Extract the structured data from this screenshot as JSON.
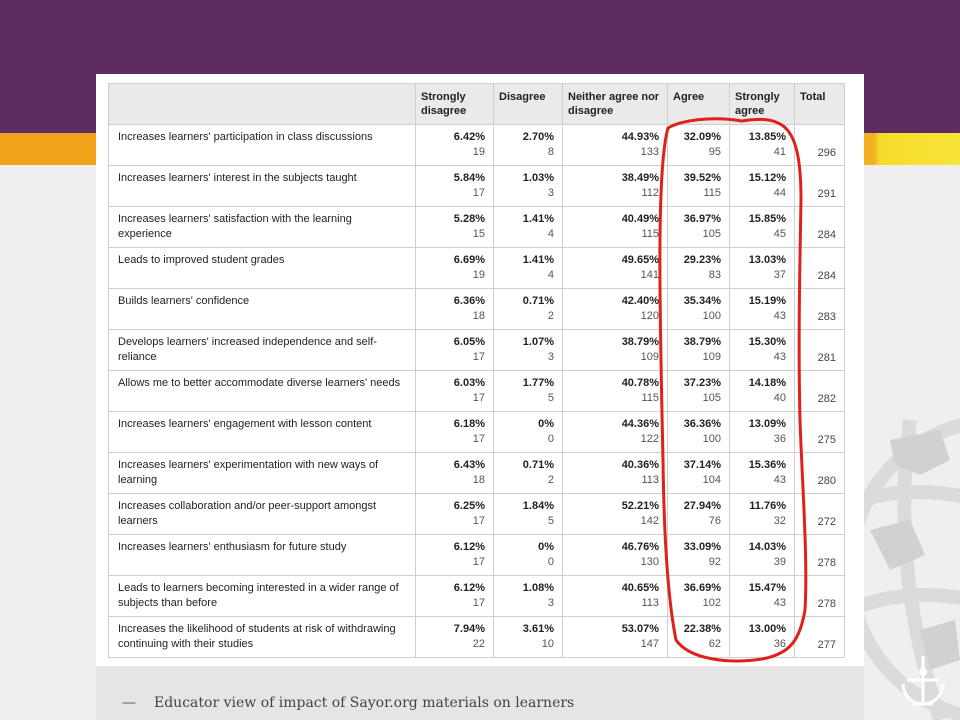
{
  "slide": {
    "caption": "Educator view of impact of Sayor.org materials on learners",
    "caption_dash": "—",
    "colors": {
      "band": "#5e2c60",
      "stripe_orange": "#eea31a",
      "stripe_yellow": "#f7e43a",
      "annotation": "#e0201c"
    }
  },
  "table": {
    "headers": [
      "",
      "Strongly disagree",
      "Disagree",
      "Neither agree nor disagree",
      "Agree",
      "Strongly agree",
      "Total"
    ],
    "rows": [
      {
        "statement": "Increases learners' participation in class discussions",
        "cells": [
          {
            "pct": "6.42%",
            "n": "19"
          },
          {
            "pct": "2.70%",
            "n": "8"
          },
          {
            "pct": "44.93%",
            "n": "133"
          },
          {
            "pct": "32.09%",
            "n": "95"
          },
          {
            "pct": "13.85%",
            "n": "41"
          }
        ],
        "total": "296"
      },
      {
        "statement": "Increases learners' interest in the subjects taught",
        "cells": [
          {
            "pct": "5.84%",
            "n": "17"
          },
          {
            "pct": "1.03%",
            "n": "3"
          },
          {
            "pct": "38.49%",
            "n": "112"
          },
          {
            "pct": "39.52%",
            "n": "115"
          },
          {
            "pct": "15.12%",
            "n": "44"
          }
        ],
        "total": "291"
      },
      {
        "statement": "Increases learners' satisfaction with the learning experience",
        "cells": [
          {
            "pct": "5.28%",
            "n": "15"
          },
          {
            "pct": "1.41%",
            "n": "4"
          },
          {
            "pct": "40.49%",
            "n": "115"
          },
          {
            "pct": "36.97%",
            "n": "105"
          },
          {
            "pct": "15.85%",
            "n": "45"
          }
        ],
        "total": "284"
      },
      {
        "statement": "Leads to improved student grades",
        "cells": [
          {
            "pct": "6.69%",
            "n": "19"
          },
          {
            "pct": "1.41%",
            "n": "4"
          },
          {
            "pct": "49.65%",
            "n": "141"
          },
          {
            "pct": "29.23%",
            "n": "83"
          },
          {
            "pct": "13.03%",
            "n": "37"
          }
        ],
        "total": "284"
      },
      {
        "statement": "Builds learners' confidence",
        "cells": [
          {
            "pct": "6.36%",
            "n": "18"
          },
          {
            "pct": "0.71%",
            "n": "2"
          },
          {
            "pct": "42.40%",
            "n": "120"
          },
          {
            "pct": "35.34%",
            "n": "100"
          },
          {
            "pct": "15.19%",
            "n": "43"
          }
        ],
        "total": "283"
      },
      {
        "statement": "Develops learners' increased independence and self-reliance",
        "cells": [
          {
            "pct": "6.05%",
            "n": "17"
          },
          {
            "pct": "1.07%",
            "n": "3"
          },
          {
            "pct": "38.79%",
            "n": "109"
          },
          {
            "pct": "38.79%",
            "n": "109"
          },
          {
            "pct": "15.30%",
            "n": "43"
          }
        ],
        "total": "281"
      },
      {
        "statement": "Allows me to better accommodate diverse learners' needs",
        "cells": [
          {
            "pct": "6.03%",
            "n": "17"
          },
          {
            "pct": "1.77%",
            "n": "5"
          },
          {
            "pct": "40.78%",
            "n": "115"
          },
          {
            "pct": "37.23%",
            "n": "105"
          },
          {
            "pct": "14.18%",
            "n": "40"
          }
        ],
        "total": "282"
      },
      {
        "statement": "Increases learners' engagement with lesson content",
        "cells": [
          {
            "pct": "6.18%",
            "n": "17"
          },
          {
            "pct": "0%",
            "n": "0"
          },
          {
            "pct": "44.36%",
            "n": "122"
          },
          {
            "pct": "36.36%",
            "n": "100"
          },
          {
            "pct": "13.09%",
            "n": "36"
          }
        ],
        "total": "275"
      },
      {
        "statement": "Increases learners' experimentation with new ways of learning",
        "cells": [
          {
            "pct": "6.43%",
            "n": "18"
          },
          {
            "pct": "0.71%",
            "n": "2"
          },
          {
            "pct": "40.36%",
            "n": "113"
          },
          {
            "pct": "37.14%",
            "n": "104"
          },
          {
            "pct": "15.36%",
            "n": "43"
          }
        ],
        "total": "280"
      },
      {
        "statement": "Increases collaboration and/or peer-support amongst learners",
        "cells": [
          {
            "pct": "6.25%",
            "n": "17"
          },
          {
            "pct": "1.84%",
            "n": "5"
          },
          {
            "pct": "52.21%",
            "n": "142"
          },
          {
            "pct": "27.94%",
            "n": "76"
          },
          {
            "pct": "11.76%",
            "n": "32"
          }
        ],
        "total": "272"
      },
      {
        "statement": "Increases learners' enthusiasm for future study",
        "cells": [
          {
            "pct": "6.12%",
            "n": "17"
          },
          {
            "pct": "0%",
            "n": "0"
          },
          {
            "pct": "46.76%",
            "n": "130"
          },
          {
            "pct": "33.09%",
            "n": "92"
          },
          {
            "pct": "14.03%",
            "n": "39"
          }
        ],
        "total": "278"
      },
      {
        "statement": "Leads to learners becoming interested in a wider range of subjects than before",
        "cells": [
          {
            "pct": "6.12%",
            "n": "17"
          },
          {
            "pct": "1.08%",
            "n": "3"
          },
          {
            "pct": "40.65%",
            "n": "113"
          },
          {
            "pct": "36.69%",
            "n": "102"
          },
          {
            "pct": "15.47%",
            "n": "43"
          }
        ],
        "total": "278"
      },
      {
        "statement": "Increases the likelihood of students at risk of withdrawing continuing with their studies",
        "cells": [
          {
            "pct": "7.94%",
            "n": "22"
          },
          {
            "pct": "3.61%",
            "n": "10"
          },
          {
            "pct": "53.07%",
            "n": "147"
          },
          {
            "pct": "22.38%",
            "n": "62"
          },
          {
            "pct": "13.00%",
            "n": "36"
          }
        ],
        "total": "277"
      }
    ]
  }
}
